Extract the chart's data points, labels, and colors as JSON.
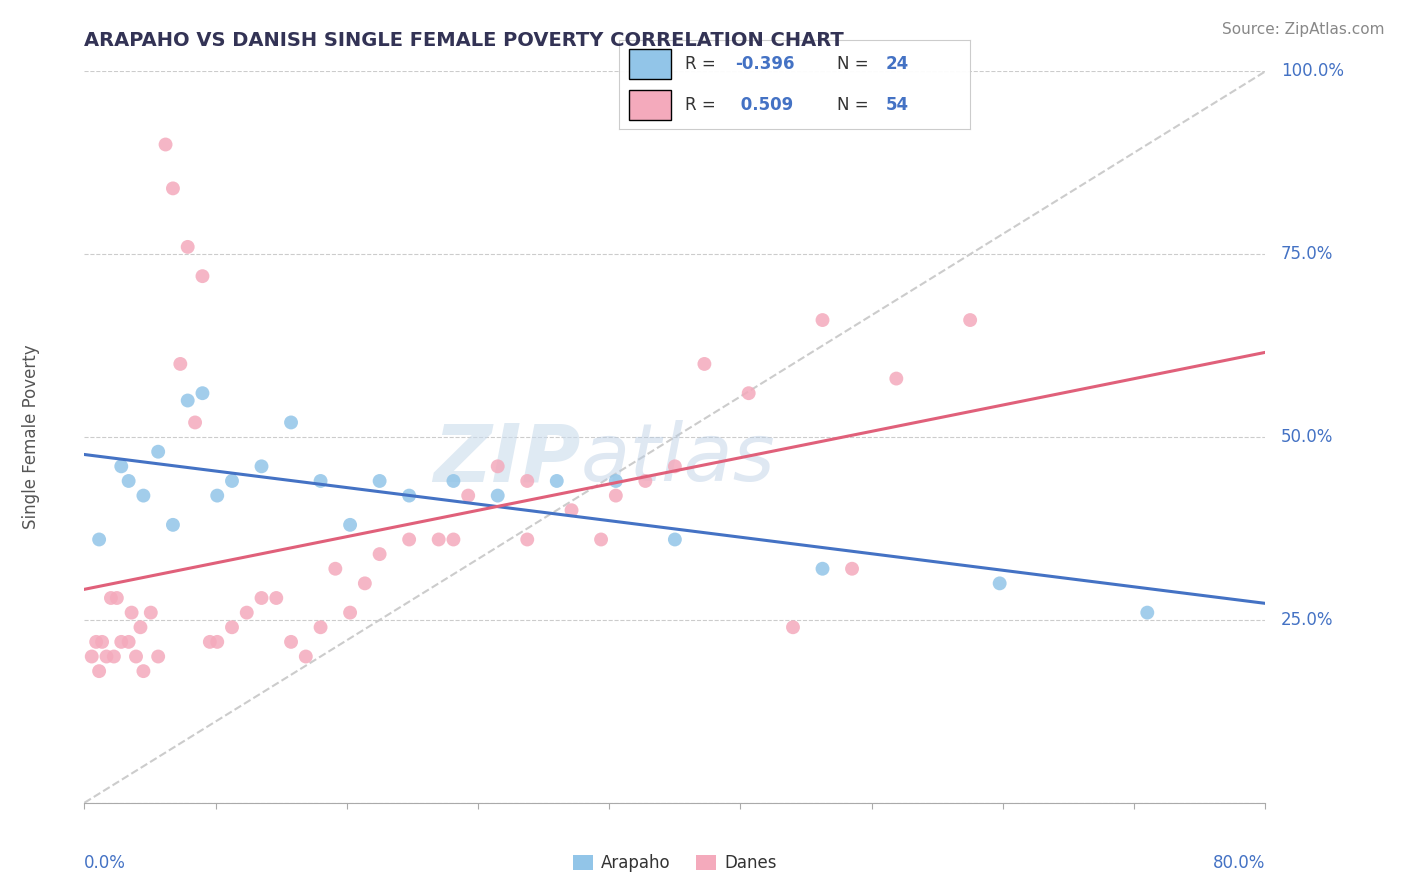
{
  "title": "ARAPAHO VS DANISH SINGLE FEMALE POVERTY CORRELATION CHART",
  "source": "Source: ZipAtlas.com",
  "ylabel": "Single Female Poverty",
  "watermark_zip": "ZIP",
  "watermark_atlas": "atlas",
  "arapaho_R": -0.396,
  "arapaho_N": 24,
  "danes_R": 0.509,
  "danes_N": 54,
  "xlim": [
    0.0,
    80.0
  ],
  "ylim": [
    0.0,
    100.0
  ],
  "ytick_vals": [
    0,
    25,
    50,
    75,
    100
  ],
  "ytick_labels": [
    "0.0%",
    "25.0%",
    "50.0%",
    "75.0%",
    "100.0%"
  ],
  "arapaho_color": "#92C5E8",
  "danes_color": "#F4AABC",
  "trendline_arapaho_color": "#4472C4",
  "trendline_danes_color": "#E0607A",
  "trendline_ref_color": "#CCCCCC",
  "background_color": "#FFFFFF",
  "grid_color": "#CCCCCC",
  "label_color": "#4472C4",
  "title_color": "#333355",
  "arapaho_x": [
    1.0,
    2.5,
    3.0,
    4.0,
    5.0,
    6.0,
    7.0,
    8.0,
    9.0,
    10.0,
    12.0,
    14.0,
    16.0,
    18.0,
    20.0,
    22.0,
    25.0,
    28.0,
    32.0,
    36.0,
    40.0,
    50.0,
    62.0,
    72.0
  ],
  "arapaho_y": [
    36.0,
    46.0,
    44.0,
    42.0,
    48.0,
    38.0,
    55.0,
    56.0,
    42.0,
    44.0,
    46.0,
    52.0,
    44.0,
    38.0,
    44.0,
    42.0,
    44.0,
    42.0,
    44.0,
    44.0,
    36.0,
    32.0,
    30.0,
    26.0
  ],
  "danes_x": [
    0.5,
    0.8,
    1.0,
    1.5,
    2.0,
    2.5,
    3.0,
    3.5,
    4.0,
    5.0,
    5.5,
    6.0,
    7.0,
    8.0,
    8.5,
    9.0,
    10.0,
    11.0,
    12.0,
    13.0,
    14.0,
    15.0,
    16.0,
    17.0,
    18.0,
    19.0,
    20.0,
    22.0,
    24.0,
    26.0,
    28.0,
    30.0,
    33.0,
    36.0,
    38.0,
    40.0,
    42.0,
    45.0,
    50.0,
    55.0,
    60.0,
    1.2,
    1.8,
    2.2,
    3.2,
    3.8,
    4.5,
    6.5,
    7.5,
    25.0,
    30.0,
    35.0,
    48.0,
    52.0
  ],
  "danes_y": [
    20.0,
    22.0,
    18.0,
    20.0,
    20.0,
    22.0,
    22.0,
    20.0,
    18.0,
    20.0,
    90.0,
    84.0,
    76.0,
    72.0,
    22.0,
    22.0,
    24.0,
    26.0,
    28.0,
    28.0,
    22.0,
    20.0,
    24.0,
    32.0,
    26.0,
    30.0,
    34.0,
    36.0,
    36.0,
    42.0,
    46.0,
    44.0,
    40.0,
    42.0,
    44.0,
    46.0,
    60.0,
    56.0,
    66.0,
    58.0,
    66.0,
    22.0,
    28.0,
    28.0,
    26.0,
    24.0,
    26.0,
    60.0,
    52.0,
    36.0,
    36.0,
    36.0,
    24.0,
    32.0
  ]
}
